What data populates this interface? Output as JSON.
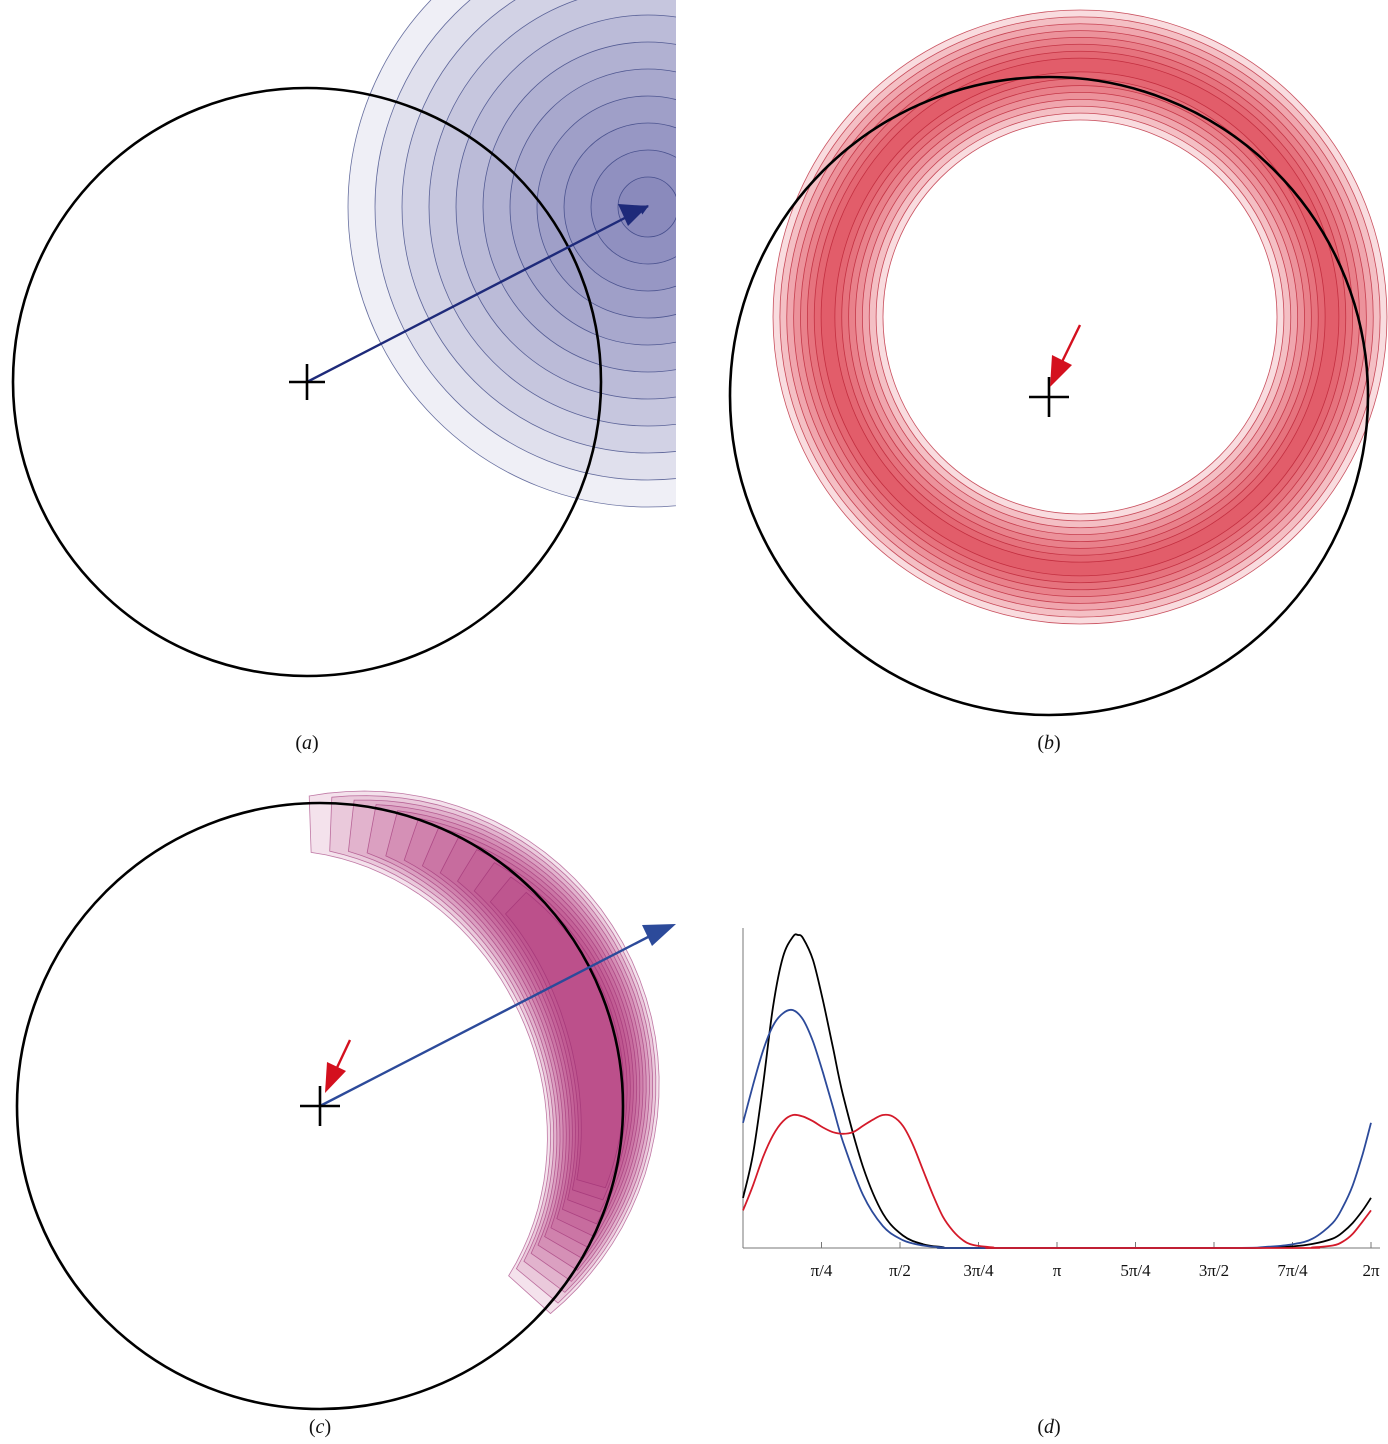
{
  "captions": {
    "a": "a",
    "b": "b",
    "c": "c",
    "d": "d"
  },
  "colors": {
    "panel_a": "#4a5396",
    "panel_b": "#dc2f42",
    "panel_c": "#b0307a",
    "arrow_blue": "#1e2a7a",
    "arrow_red": "#d4101e",
    "circle": "#000000"
  },
  "chart_data": {
    "type": "line",
    "xlim": [
      0,
      6.2832
    ],
    "ylim": [
      0,
      1.0
    ],
    "x_ticks": [
      {
        "label": "π/4",
        "value": 0.7854
      },
      {
        "label": "π/2",
        "value": 1.5708
      },
      {
        "label": "3π/4",
        "value": 2.3562
      },
      {
        "label": "π",
        "value": 3.1416
      },
      {
        "label": "5π/4",
        "value": 3.927
      },
      {
        "label": "3π/2",
        "value": 4.7124
      },
      {
        "label": "7π/4",
        "value": 5.4978
      },
      {
        "label": "2π",
        "value": 6.2832
      }
    ],
    "series": [
      {
        "color": "#000000",
        "x": [
          0,
          0.1,
          0.2,
          0.3,
          0.4,
          0.5,
          0.55,
          0.6,
          0.7,
          0.8,
          0.9,
          1.0,
          1.2,
          1.4,
          1.6,
          1.8,
          2.0,
          2.2,
          4.8,
          5.2,
          5.5,
          5.7,
          5.9,
          6.0,
          6.1,
          6.2,
          6.2832
        ],
        "y": [
          0.16,
          0.3,
          0.52,
          0.77,
          0.93,
          0.995,
          1.0,
          0.99,
          0.92,
          0.79,
          0.64,
          0.49,
          0.26,
          0.11,
          0.04,
          0.012,
          0.003,
          0.0,
          0.0,
          0.001,
          0.005,
          0.013,
          0.03,
          0.05,
          0.08,
          0.12,
          0.16
        ]
      },
      {
        "color": "#2c4a9a",
        "x": [
          0,
          0.1,
          0.2,
          0.3,
          0.4,
          0.5,
          0.6,
          0.7,
          0.8,
          0.9,
          1.0,
          1.2,
          1.4,
          1.6,
          1.8,
          2.0,
          2.2,
          4.8,
          5.2,
          5.5,
          5.7,
          5.9,
          6.0,
          6.1,
          6.2,
          6.2832
        ],
        "y": [
          0.4,
          0.52,
          0.63,
          0.71,
          0.75,
          0.76,
          0.73,
          0.66,
          0.56,
          0.45,
          0.34,
          0.17,
          0.07,
          0.025,
          0.008,
          0.002,
          0.0,
          0.0,
          0.003,
          0.012,
          0.03,
          0.08,
          0.13,
          0.2,
          0.3,
          0.4
        ]
      },
      {
        "color": "#d41a2a",
        "x": [
          0,
          0.1,
          0.2,
          0.3,
          0.4,
          0.5,
          0.6,
          0.7,
          0.8,
          0.9,
          1.0,
          1.1,
          1.2,
          1.3,
          1.4,
          1.5,
          1.6,
          1.7,
          1.8,
          1.9,
          2.0,
          2.1,
          2.2,
          2.3,
          2.5,
          2.7,
          5.5,
          5.7,
          5.9,
          6.0,
          6.1,
          6.2,
          6.2832
        ],
        "y": [
          0.12,
          0.2,
          0.29,
          0.36,
          0.405,
          0.425,
          0.42,
          0.405,
          0.385,
          0.37,
          0.365,
          0.37,
          0.39,
          0.41,
          0.425,
          0.42,
          0.39,
          0.33,
          0.25,
          0.17,
          0.1,
          0.055,
          0.025,
          0.01,
          0.002,
          0.0,
          0.0,
          0.002,
          0.008,
          0.02,
          0.045,
          0.085,
          0.12
        ]
      }
    ]
  }
}
